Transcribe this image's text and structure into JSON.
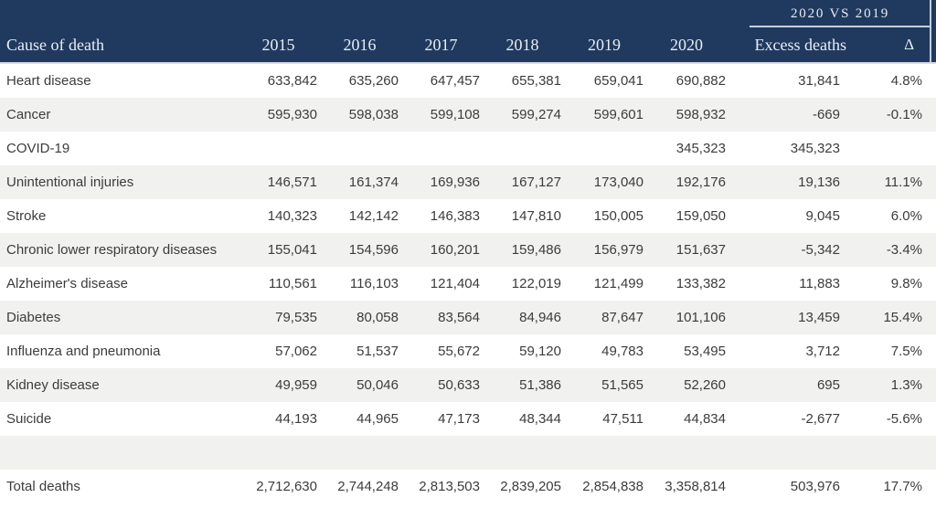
{
  "colors": {
    "header_bg": "#1f3a5e",
    "header_text": "#e9edf4",
    "row_stripe": "#f1f1ef",
    "body_text": "#3c3c3c",
    "header_rule": "#c6cddb",
    "header_divider": "#dadbe7"
  },
  "chart_data": {
    "type": "table",
    "group_header": "2020 VS 2019",
    "columns": [
      "Cause of death",
      "2015",
      "2016",
      "2017",
      "2018",
      "2019",
      "2020",
      "Excess deaths",
      "Δ"
    ],
    "rows": [
      {
        "name": "row-heart-disease",
        "cells": [
          "Heart disease",
          "633,842",
          "635,260",
          "647,457",
          "655,381",
          "659,041",
          "690,882",
          "31,841",
          "4.8%"
        ]
      },
      {
        "name": "row-cancer",
        "cells": [
          "Cancer",
          "595,930",
          "598,038",
          "599,108",
          "599,274",
          "599,601",
          "598,932",
          "-669",
          "-0.1%"
        ]
      },
      {
        "name": "row-covid-19",
        "cells": [
          "COVID-19",
          "",
          "",
          "",
          "",
          "",
          "345,323",
          "345,323",
          ""
        ]
      },
      {
        "name": "row-unintentional-injuries",
        "cells": [
          "Unintentional injuries",
          "146,571",
          "161,374",
          "169,936",
          "167,127",
          "173,040",
          "192,176",
          "19,136",
          "11.1%"
        ]
      },
      {
        "name": "row-stroke",
        "cells": [
          "Stroke",
          "140,323",
          "142,142",
          "146,383",
          "147,810",
          "150,005",
          "159,050",
          "9,045",
          "6.0%"
        ]
      },
      {
        "name": "row-chronic-lower-respiratory-diseases",
        "cells": [
          "Chronic lower respiratory diseases",
          "155,041",
          "154,596",
          "160,201",
          "159,486",
          "156,979",
          "151,637",
          "-5,342",
          "-3.4%"
        ]
      },
      {
        "name": "row-alzheimers-disease",
        "cells": [
          "Alzheimer's disease",
          "110,561",
          "116,103",
          "121,404",
          "122,019",
          "121,499",
          "133,382",
          "11,883",
          "9.8%"
        ]
      },
      {
        "name": "row-diabetes",
        "cells": [
          "Diabetes",
          "79,535",
          "80,058",
          "83,564",
          "84,946",
          "87,647",
          "101,106",
          "13,459",
          "15.4%"
        ]
      },
      {
        "name": "row-influenza-and-pneumonia",
        "cells": [
          "Influenza and pneumonia",
          "57,062",
          "51,537",
          "55,672",
          "59,120",
          "49,783",
          "53,495",
          "3,712",
          "7.5%"
        ]
      },
      {
        "name": "row-kidney-disease",
        "cells": [
          "Kidney disease",
          "49,959",
          "50,046",
          "50,633",
          "51,386",
          "51,565",
          "52,260",
          "695",
          "1.3%"
        ]
      },
      {
        "name": "row-suicide",
        "cells": [
          "Suicide",
          "44,193",
          "44,965",
          "47,173",
          "48,344",
          "47,511",
          "44,834",
          "-2,677",
          "-5.6%"
        ]
      },
      {
        "name": "spacer-row",
        "cells": [
          "",
          "",
          "",
          "",
          "",
          "",
          "",
          "",
          ""
        ]
      },
      {
        "name": "row-total-deaths",
        "cells": [
          "Total deaths",
          "2,712,630",
          "2,744,248",
          "2,813,503",
          "2,839,205",
          "2,854,838",
          "3,358,814",
          "503,976",
          "17.7%"
        ]
      }
    ]
  }
}
